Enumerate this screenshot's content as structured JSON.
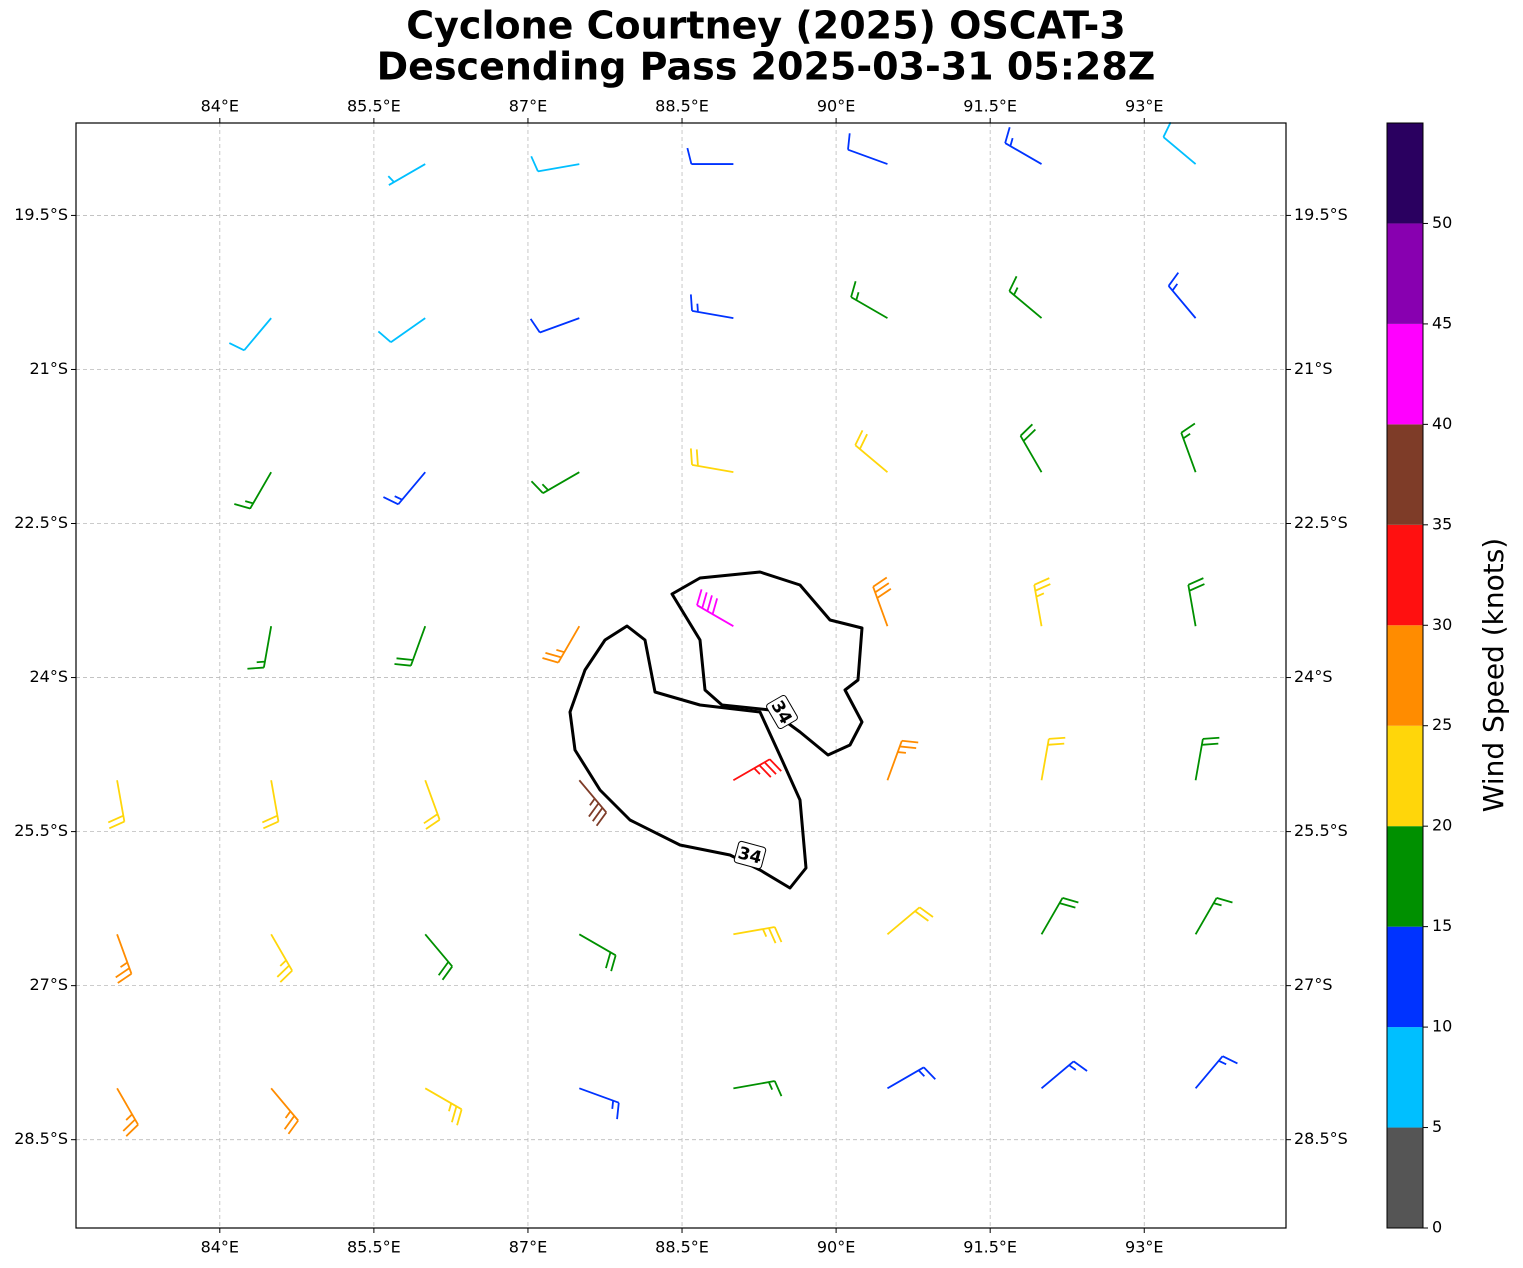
{
  "chart_data": {
    "type": "barbs",
    "title": [
      "Cyclone Courtney (2025) OSCAT-3",
      "Descending Pass 2025-03-31 05:28Z"
    ],
    "xlim": [
      82.6,
      94.38
    ],
    "ylim": [
      -29.36,
      -18.6
    ],
    "grid": true,
    "xticks": [
      {
        "value": 84,
        "label": "84°E"
      },
      {
        "value": 85.5,
        "label": "85.5°E"
      },
      {
        "value": 87,
        "label": "87°E"
      },
      {
        "value": 88.5,
        "label": "88.5°E"
      },
      {
        "value": 90,
        "label": "90°E"
      },
      {
        "value": 91.5,
        "label": "91.5°E"
      },
      {
        "value": 93,
        "label": "93°E"
      }
    ],
    "yticks": [
      {
        "value": -19.5,
        "label": "19.5°S"
      },
      {
        "value": -21,
        "label": "21°S"
      },
      {
        "value": -22.5,
        "label": "22.5°S"
      },
      {
        "value": -24,
        "label": "24°S"
      },
      {
        "value": -25.5,
        "label": "25.5°S"
      },
      {
        "value": -27,
        "label": "27°S"
      },
      {
        "value": -28.5,
        "label": "28.5°S"
      }
    ],
    "lon": [
      86,
      87.5,
      89,
      90.5,
      92,
      93.5,
      84.5,
      86,
      87.5,
      89,
      90.5,
      92,
      93.5,
      84.5,
      86,
      87.5,
      89,
      90.5,
      92,
      93.5,
      84.5,
      86,
      87.5,
      89,
      90.5,
      92,
      93.5,
      83,
      84.5,
      86,
      87.5,
      89,
      90.5,
      92,
      93.5,
      83,
      84.5,
      86,
      87.5,
      89,
      90.5,
      92,
      93.5,
      83,
      84.5,
      86,
      87.5,
      89,
      90.5,
      92,
      93.5
    ],
    "lat": [
      -19,
      -19,
      -19,
      -19,
      -19,
      -19,
      -20.5,
      -20.5,
      -20.5,
      -20.5,
      -20.5,
      -20.5,
      -20.5,
      -22,
      -22,
      -22,
      -22,
      -22,
      -22,
      -22,
      -23.5,
      -23.5,
      -23.5,
      -23.5,
      -23.5,
      -23.5,
      -23.5,
      -25,
      -25,
      -25,
      -25,
      -25,
      -25,
      -25,
      -25,
      -26.5,
      -26.5,
      -26.5,
      -26.5,
      -26.5,
      -26.5,
      -26.5,
      -26.5,
      -28,
      -28,
      -28,
      -28,
      -28,
      -28,
      -28,
      -28
    ],
    "speed": [
      5,
      8,
      10,
      12,
      13,
      9,
      8,
      8,
      12,
      13,
      17,
      15,
      13,
      16,
      14,
      17,
      22,
      22,
      18,
      17,
      17,
      19,
      27,
      42,
      28,
      23,
      19,
      22,
      22,
      22,
      37,
      33,
      27,
      22,
      18,
      27,
      23,
      18,
      18,
      23,
      22,
      18,
      17,
      27,
      26,
      23,
      14,
      16,
      14,
      13,
      13
    ],
    "direction": [
      240,
      260,
      270,
      290,
      300,
      310,
      220,
      235,
      250,
      280,
      300,
      310,
      320,
      210,
      220,
      240,
      280,
      310,
      330,
      340,
      190,
      200,
      210,
      300,
      340,
      350,
      350,
      170,
      170,
      160,
      140,
      60,
      20,
      10,
      10,
      160,
      150,
      140,
      120,
      80,
      50,
      30,
      30,
      150,
      140,
      120,
      110,
      80,
      60,
      50,
      40
    ],
    "contour_labels": [
      34,
      34
    ],
    "colorbar": {
      "label": "Wind Speed (knots)",
      "lim": [
        0,
        55
      ],
      "bounds": [
        0,
        5,
        10,
        15,
        20,
        25,
        30,
        35,
        40,
        45,
        50,
        55
      ],
      "colors": [
        "#555555",
        "#00bfff",
        "#0033ff",
        "#009000",
        "#ffd60a",
        "#ff8c00",
        "#ff1010",
        "#7e3c28",
        "#ff00ff",
        "#8800b0",
        "#2a0060"
      ],
      "ticks": [
        0,
        5,
        10,
        15,
        20,
        25,
        30,
        35,
        40,
        45,
        50
      ]
    }
  }
}
